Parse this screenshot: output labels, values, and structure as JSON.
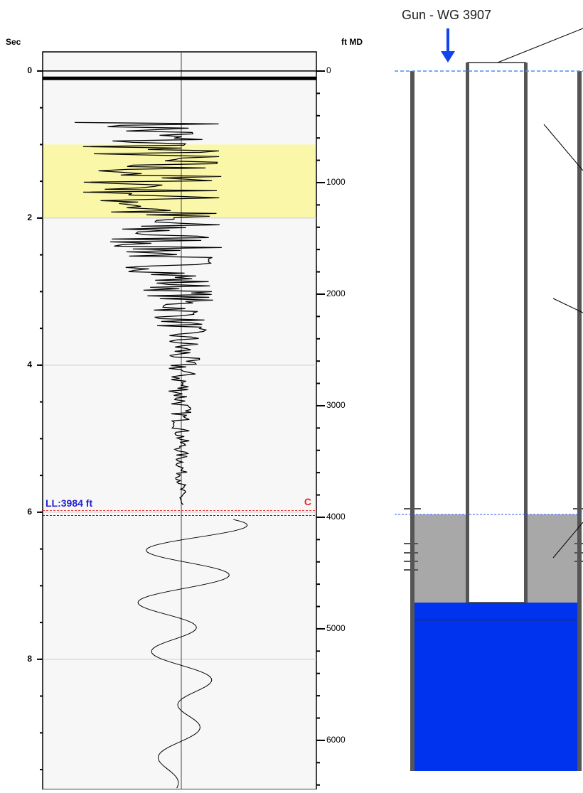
{
  "time_axis": {
    "label": "Sec",
    "lim": [
      -0.26,
      9.77
    ],
    "ticks": [
      0,
      2,
      4,
      6,
      8
    ]
  },
  "depth_axis": {
    "label": "ft MD",
    "lim": [
      -172,
      6440
    ],
    "ticks": [
      0,
      1000,
      2000,
      3000,
      4000,
      5000,
      6000
    ]
  },
  "liquid_level": {
    "label": "LL:3984 ft",
    "depth": 3984,
    "flag": "C"
  },
  "wellbore": {
    "gun_label": "Gun - WG 3907"
  }
}
